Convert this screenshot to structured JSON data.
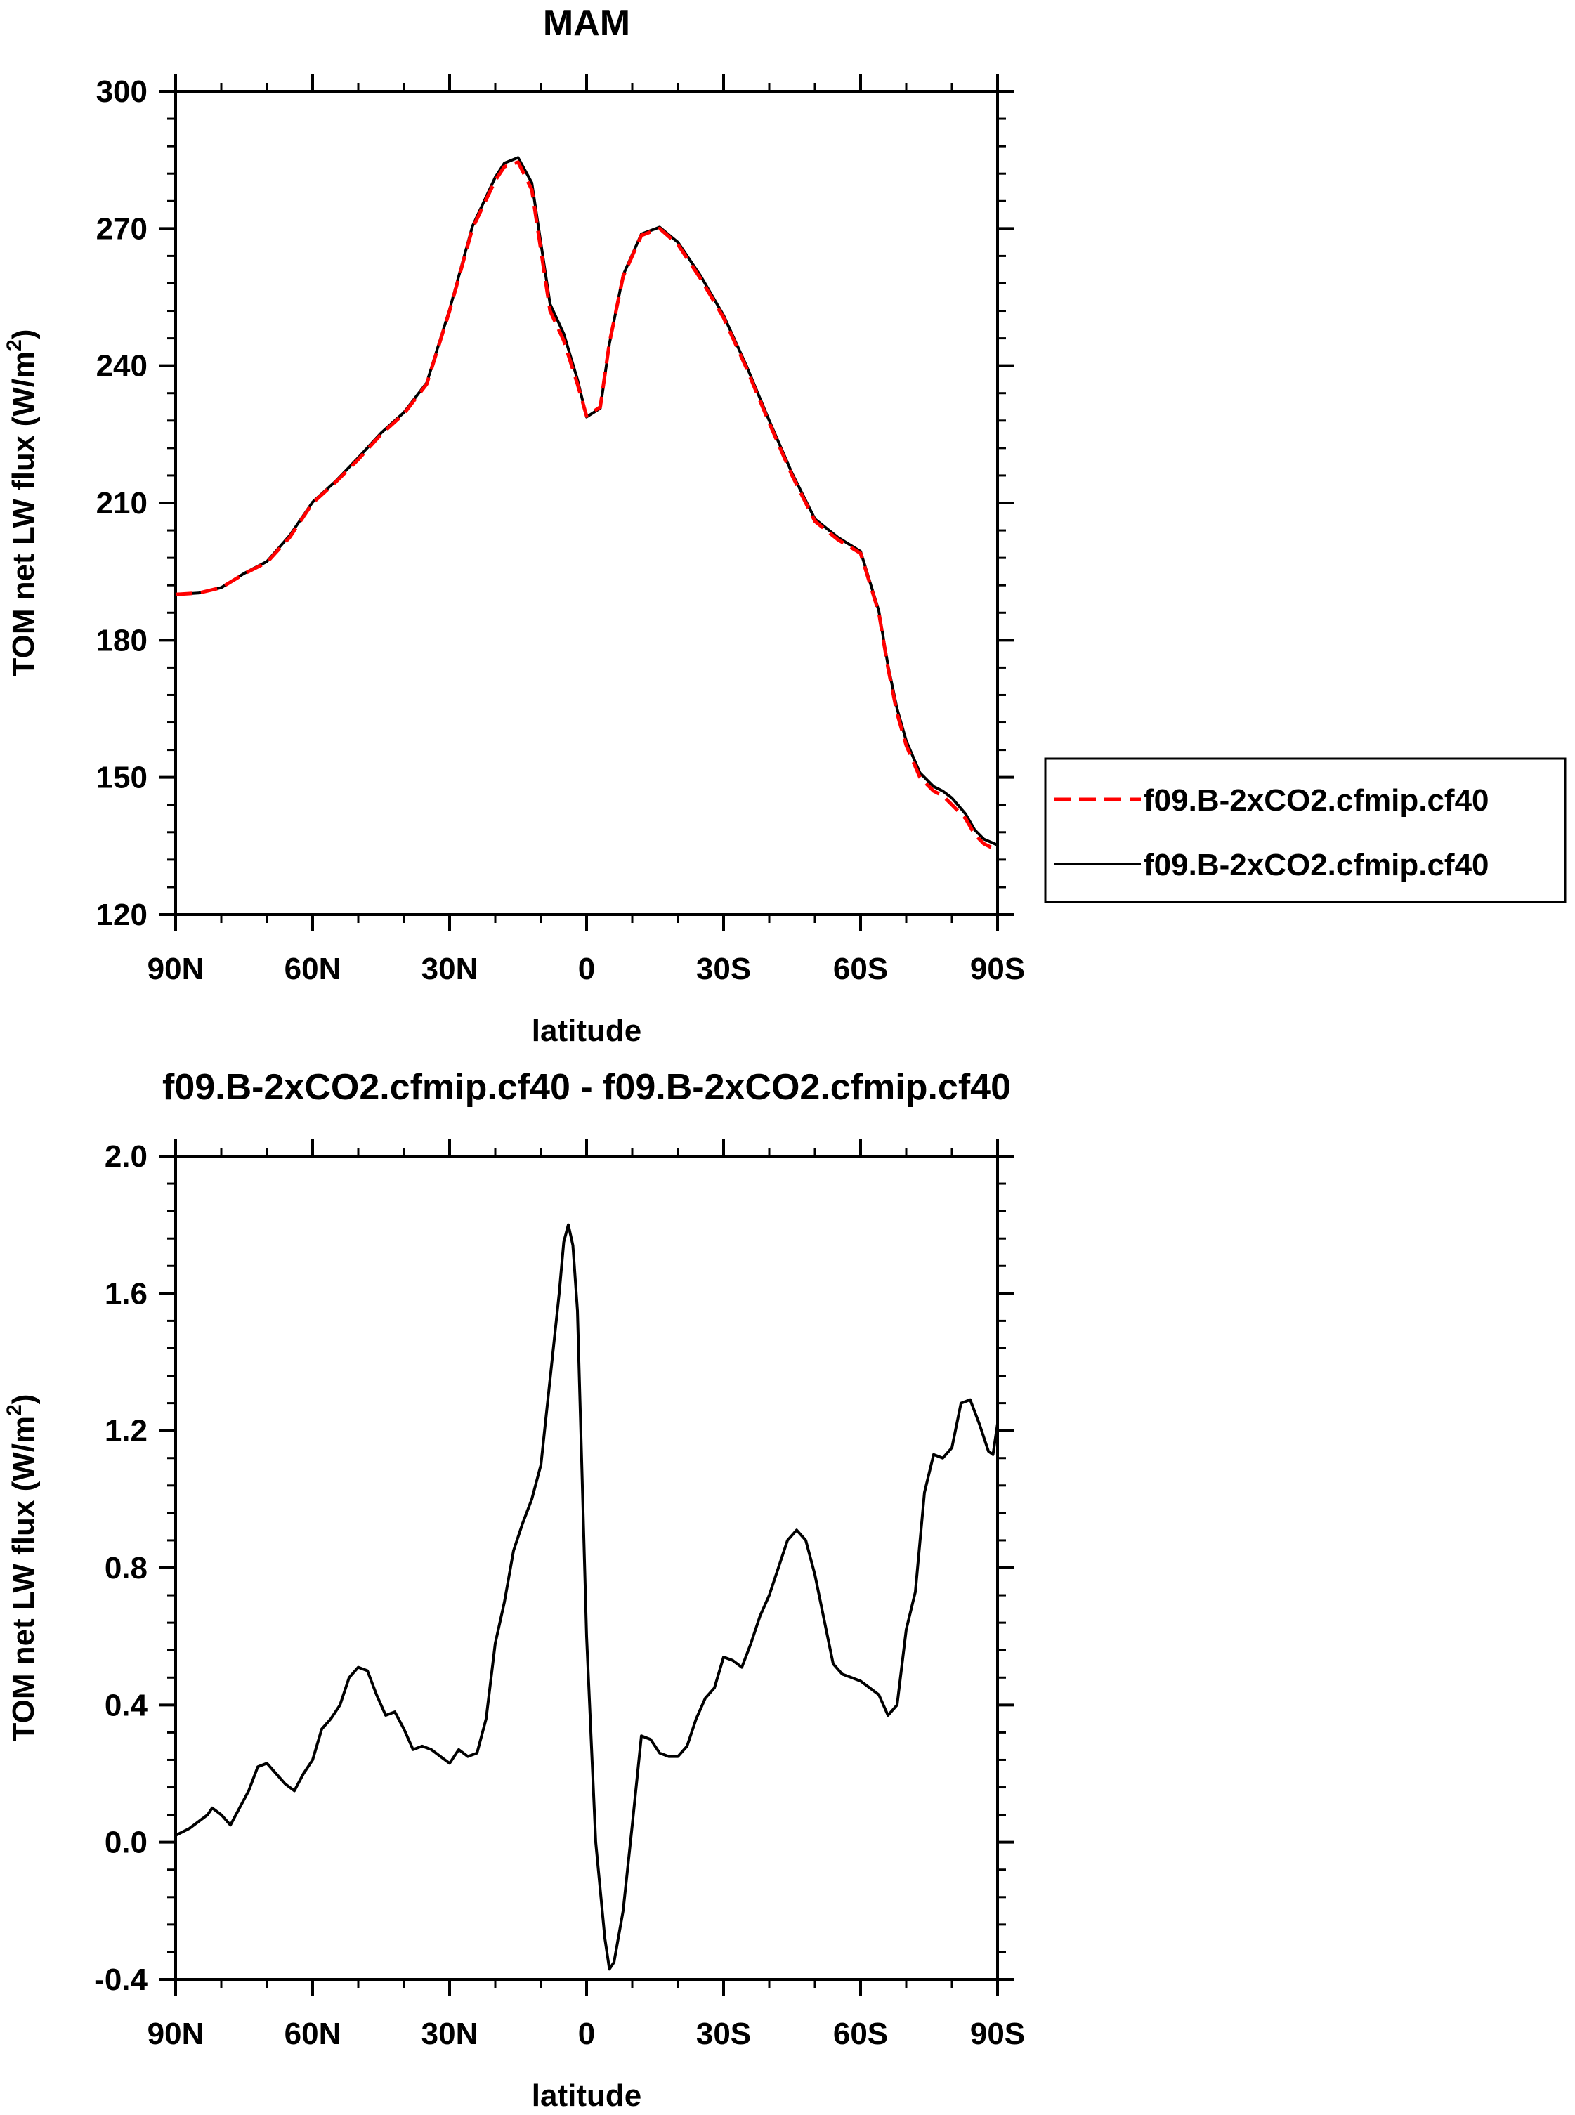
{
  "chart_data": [
    {
      "type": "line",
      "title": "MAM",
      "xlabel": "latitude",
      "ylabel": "TOM net LW flux (W/m",
      "ylabel_sup": "2",
      "ylabel_end": ")",
      "ylim": [
        120,
        300
      ],
      "yticks": [
        "120",
        "150",
        "180",
        "210",
        "240",
        "270",
        "300"
      ],
      "xlim": [
        -90,
        90
      ],
      "xticks": [
        "90N",
        "60N",
        "30N",
        "0",
        "30S",
        "60S",
        "90S"
      ],
      "x_direction": "north (90N) on left to south (90S) on right; values: -90 = 90N, +90 = 90S",
      "legend": {
        "placement": "right",
        "entries": [
          "f09.B-2xCO2.cfmip.cf40",
          "f09.B-2xCO2.cfmip.cf40"
        ]
      },
      "x": [
        -90,
        -85,
        -80,
        -75,
        -70,
        -65,
        -60,
        -55,
        -50,
        -45,
        -40,
        -35,
        -30,
        -25,
        -20,
        -18,
        -15,
        -12,
        -8,
        -5,
        -2,
        0,
        3,
        5,
        8,
        12,
        16,
        20,
        25,
        30,
        35,
        40,
        45,
        50,
        55,
        60,
        64,
        66,
        68,
        70,
        73,
        76,
        78,
        80,
        83,
        85,
        87,
        90
      ],
      "series": [
        {
          "name": "f09.B-2xCO2.cfmip.cf40",
          "color": "#ff0000",
          "dash": "dashed",
          "values": [
            190.0,
            190.3,
            191.5,
            194.5,
            197.0,
            202.5,
            210.0,
            214.5,
            219.5,
            225.0,
            229.5,
            236.0,
            252.0,
            270.0,
            280.5,
            283.5,
            284.5,
            278.5,
            252.0,
            245.5,
            236.0,
            229.0,
            231.0,
            245.0,
            259.5,
            268.5,
            270.0,
            266.5,
            259.0,
            250.5,
            239.5,
            227.5,
            216.0,
            206.0,
            202.0,
            199.0,
            186.0,
            174.0,
            164.0,
            157.0,
            150.0,
            147.0,
            146.0,
            144.0,
            141.0,
            137.5,
            135.5,
            134.0
          ]
        },
        {
          "name": "f09.B-2xCO2.cfmip.cf40",
          "color": "#000000",
          "dash": "solid",
          "values": [
            190.0,
            190.3,
            191.5,
            194.6,
            197.2,
            202.9,
            210.2,
            214.7,
            219.9,
            225.3,
            229.8,
            236.3,
            252.3,
            270.5,
            281.2,
            284.3,
            285.5,
            280.0,
            253.5,
            247.0,
            237.0,
            228.8,
            230.7,
            244.8,
            259.8,
            268.8,
            270.3,
            267.0,
            259.6,
            251.0,
            240.0,
            228.0,
            216.5,
            206.5,
            202.5,
            199.4,
            186.4,
            174.5,
            165.0,
            158.0,
            151.0,
            148.0,
            147.0,
            145.5,
            142.0,
            138.5,
            136.5,
            135.2
          ]
        }
      ]
    },
    {
      "type": "line",
      "title": "f09.B-2xCO2.cfmip.cf40 - f09.B-2xCO2.cfmip.cf40",
      "xlabel": "latitude",
      "ylabel": "TOM net LW flux (W/m",
      "ylabel_sup": "2",
      "ylabel_end": ")",
      "ylim": [
        -0.4,
        2.0
      ],
      "yticks": [
        "-0.4",
        "0.0",
        "0.4",
        "0.8",
        "1.2",
        "1.6",
        "2.0"
      ],
      "xlim": [
        -90,
        90
      ],
      "xticks": [
        "90N",
        "60N",
        "30N",
        "0",
        "30S",
        "60S",
        "90S"
      ],
      "x": [
        -90,
        -87,
        -85,
        -83,
        -82,
        -80,
        -78,
        -76,
        -74,
        -72,
        -70,
        -68,
        -66,
        -64,
        -62,
        -60,
        -58,
        -56,
        -54,
        -52,
        -50,
        -48,
        -46,
        -44,
        -42,
        -40,
        -38,
        -36,
        -34,
        -32,
        -30,
        -28,
        -26,
        -24,
        -22,
        -20,
        -18,
        -16,
        -14,
        -12,
        -10,
        -8,
        -6,
        -5,
        -4,
        -3,
        -2,
        0,
        2,
        4,
        5,
        6,
        8,
        10,
        12,
        14,
        16,
        18,
        20,
        22,
        24,
        26,
        28,
        30,
        32,
        34,
        36,
        38,
        40,
        42,
        44,
        46,
        48,
        50,
        52,
        54,
        56,
        58,
        60,
        62,
        64,
        66,
        68,
        70,
        72,
        74,
        76,
        78,
        80,
        82,
        84,
        86,
        88,
        89,
        90
      ],
      "series": [
        {
          "name": "f09.B-2xCO2.cfmip.cf40",
          "color": "#000000",
          "dash": "solid",
          "values": [
            0.02,
            0.04,
            0.06,
            0.08,
            0.1,
            0.08,
            0.05,
            0.1,
            0.15,
            0.22,
            0.23,
            0.2,
            0.17,
            0.15,
            0.2,
            0.24,
            0.33,
            0.36,
            0.4,
            0.48,
            0.51,
            0.5,
            0.43,
            0.37,
            0.38,
            0.33,
            0.27,
            0.28,
            0.27,
            0.25,
            0.23,
            0.27,
            0.25,
            0.26,
            0.36,
            0.58,
            0.7,
            0.85,
            0.93,
            1.0,
            1.1,
            1.35,
            1.6,
            1.75,
            1.8,
            1.74,
            1.55,
            0.6,
            0.0,
            -0.28,
            -0.37,
            -0.35,
            -0.2,
            0.05,
            0.31,
            0.3,
            0.26,
            0.25,
            0.25,
            0.28,
            0.36,
            0.42,
            0.45,
            0.54,
            0.53,
            0.51,
            0.58,
            0.66,
            0.72,
            0.8,
            0.88,
            0.91,
            0.88,
            0.78,
            0.65,
            0.52,
            0.49,
            0.48,
            0.47,
            0.45,
            0.43,
            0.37,
            0.4,
            0.62,
            0.73,
            1.02,
            1.13,
            1.12,
            1.15,
            1.28,
            1.29,
            1.22,
            1.14,
            1.13,
            1.22
          ]
        }
      ]
    }
  ]
}
